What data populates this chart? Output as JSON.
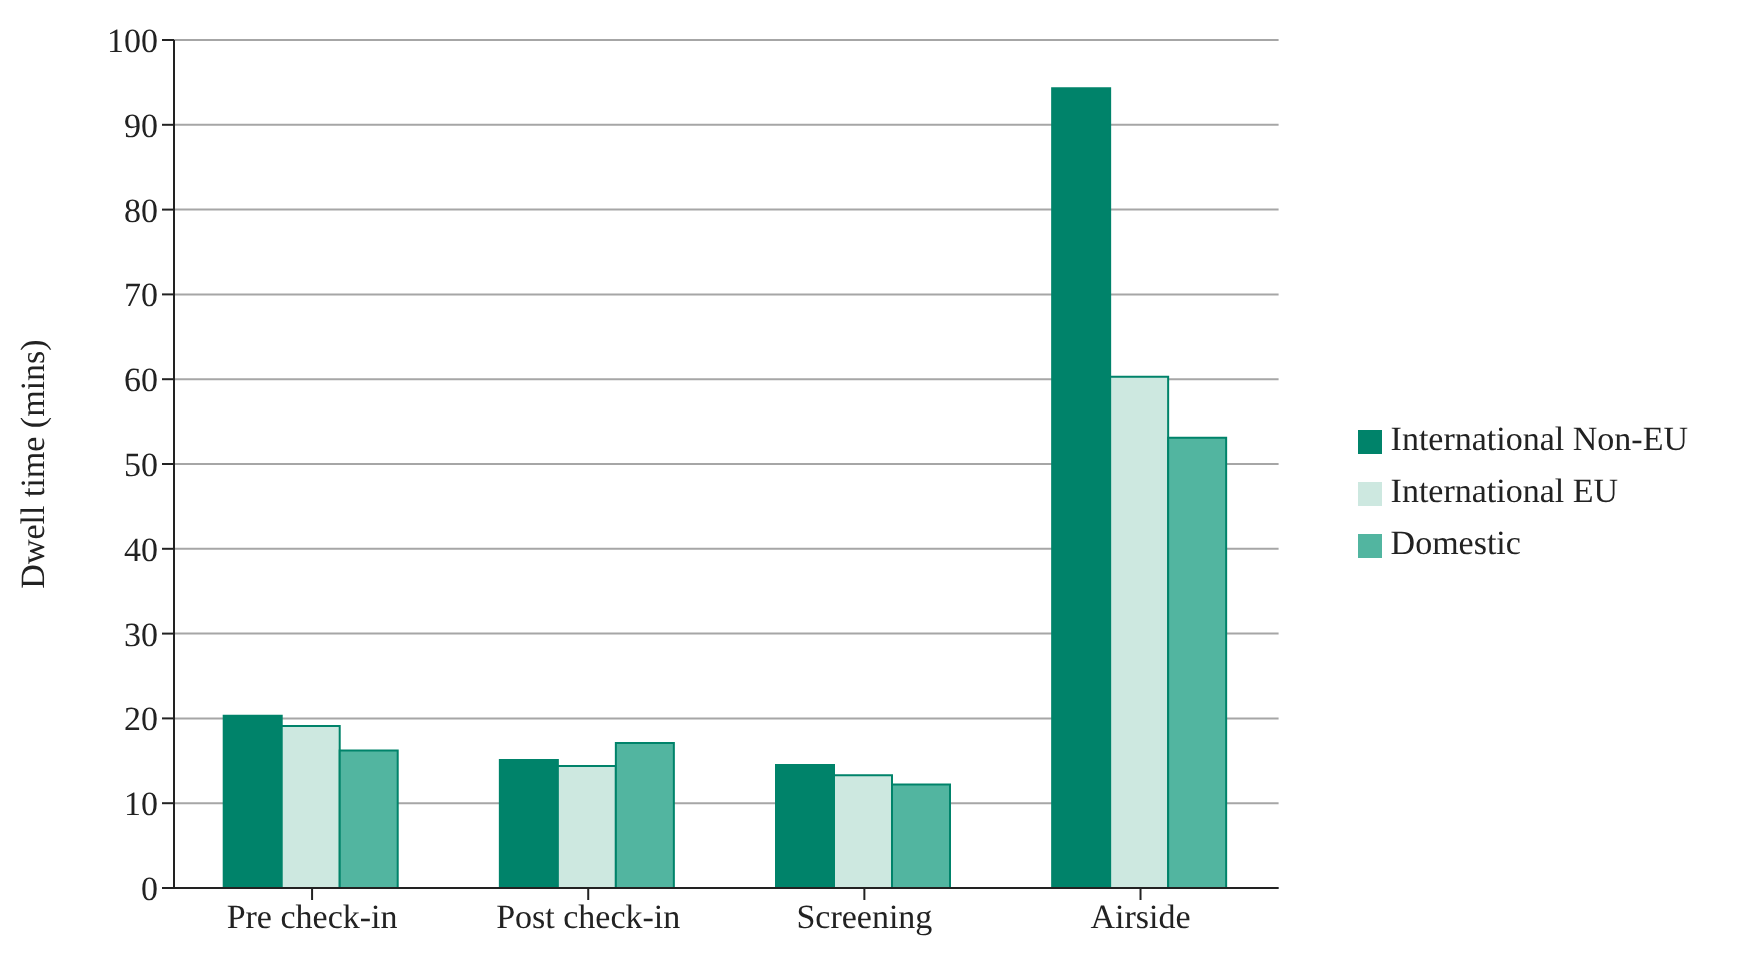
{
  "chart_data": {
    "type": "bar",
    "ylabel": "Dwell time (mins)",
    "categories": [
      "Pre check-in",
      "Post check-in",
      "Screening",
      "Airside"
    ],
    "series": [
      {
        "name": "International Non-EU",
        "color": "#00836a",
        "values": [
          20.3,
          15.1,
          14.5,
          94.3
        ]
      },
      {
        "name": "International EU",
        "color": "#cde8e0",
        "values": [
          19.1,
          14.4,
          13.3,
          60.3
        ]
      },
      {
        "name": "Domestic",
        "color": "#52b5a0",
        "values": [
          16.2,
          17.1,
          12.2,
          53.1
        ]
      }
    ],
    "ylim": [
      0,
      100
    ],
    "yticks": [
      0,
      10,
      20,
      30,
      40,
      50,
      60,
      70,
      80,
      90,
      100
    ],
    "grid": "y",
    "legend": "right"
  }
}
